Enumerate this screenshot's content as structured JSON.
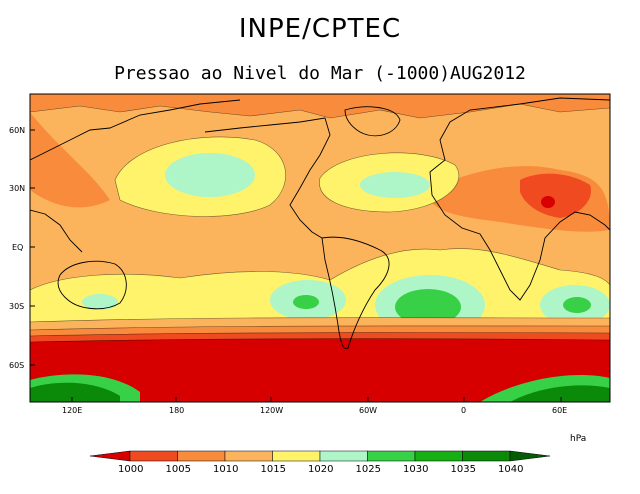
{
  "header": {
    "org": "INPE/CPTEC",
    "subtitle": "Pressao ao Nivel do Mar (-1000)AUG2012"
  },
  "axes": {
    "lat_labels": [
      "60N",
      "30N",
      "EQ",
      "30S",
      "60S"
    ],
    "lon_labels": [
      "120E",
      "180",
      "120W",
      "60W",
      "0",
      "60E"
    ]
  },
  "legend": {
    "unit": "hPa",
    "levels": [
      "1000",
      "1005",
      "1010",
      "1015",
      "1020",
      "1025",
      "1030",
      "1035",
      "1040"
    ],
    "colors": [
      "#d60000",
      "#f04a20",
      "#f88c3c",
      "#fcb45c",
      "#fff36b",
      "#aef5c8",
      "#38d046",
      "#16b014",
      "#0a8a08",
      "#045c04"
    ]
  }
}
